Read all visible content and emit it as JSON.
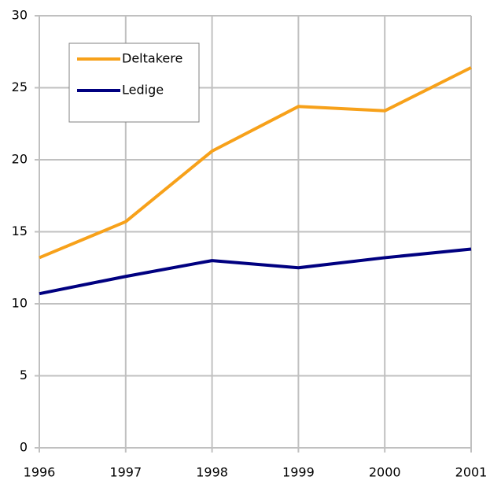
{
  "chart_data": {
    "type": "line",
    "x": [
      1996,
      1997,
      1998,
      1999,
      2000,
      2001
    ],
    "series": [
      {
        "name": "Deltakere",
        "color": "#f7a11a",
        "values": [
          13.2,
          15.7,
          20.6,
          23.7,
          23.4,
          26.4
        ]
      },
      {
        "name": "Ledige",
        "color": "#000080",
        "values": [
          10.7,
          11.9,
          13.0,
          12.5,
          13.2,
          13.8
        ]
      }
    ],
    "xlim": [
      1996,
      2001
    ],
    "xticks": [
      1996,
      1997,
      1998,
      1999,
      2000,
      2001
    ],
    "ylim": [
      0,
      30
    ],
    "yticks": [
      0,
      5,
      10,
      15,
      20,
      25,
      30
    ],
    "grid": true,
    "legend": "upper left"
  }
}
